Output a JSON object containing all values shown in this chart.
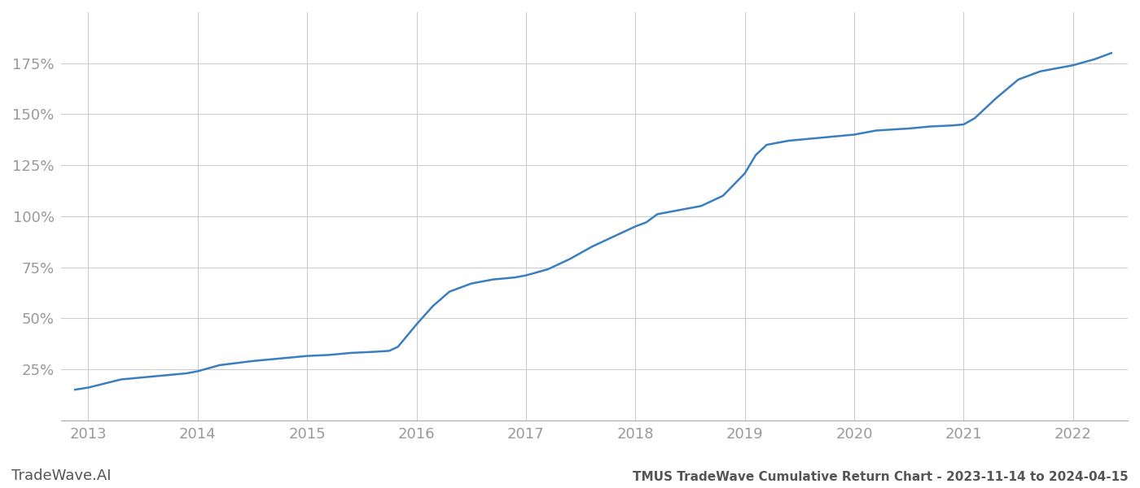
{
  "title": "TMUS TradeWave Cumulative Return Chart - 2023-11-14 to 2024-04-15",
  "watermark": "TradeWave.AI",
  "line_color": "#3a7ebf",
  "background_color": "#ffffff",
  "grid_color": "#cccccc",
  "x_years": [
    2013,
    2014,
    2015,
    2016,
    2017,
    2018,
    2019,
    2020,
    2021,
    2022
  ],
  "data_x": [
    2012.88,
    2013.0,
    2013.15,
    2013.3,
    2013.5,
    2013.7,
    2013.9,
    2014.0,
    2014.2,
    2014.5,
    2014.7,
    2014.9,
    2015.0,
    2015.2,
    2015.4,
    2015.6,
    2015.75,
    2015.83,
    2016.0,
    2016.15,
    2016.3,
    2016.5,
    2016.7,
    2016.9,
    2017.0,
    2017.2,
    2017.4,
    2017.6,
    2017.8,
    2018.0,
    2018.1,
    2018.2,
    2018.4,
    2018.6,
    2018.8,
    2019.0,
    2019.1,
    2019.2,
    2019.4,
    2019.6,
    2019.8,
    2020.0,
    2020.2,
    2020.5,
    2020.7,
    2020.9,
    2021.0,
    2021.1,
    2021.3,
    2021.5,
    2021.7,
    2021.9,
    2022.0,
    2022.2,
    2022.35
  ],
  "data_y": [
    15,
    16,
    18,
    20,
    21,
    22,
    23,
    24,
    27,
    29,
    30,
    31,
    31.5,
    32,
    33,
    33.5,
    34,
    36,
    47,
    56,
    63,
    67,
    69,
    70,
    71,
    74,
    79,
    85,
    90,
    95,
    97,
    101,
    103,
    105,
    110,
    121,
    130,
    135,
    137,
    138,
    139,
    140,
    142,
    143,
    144,
    144.5,
    145,
    148,
    158,
    167,
    171,
    173,
    174,
    177,
    180
  ],
  "ylim": [
    0,
    200
  ],
  "yticks": [
    25,
    50,
    75,
    100,
    125,
    150,
    175
  ],
  "ytick_labels": [
    "25%",
    "50%",
    "75%",
    "100%",
    "125%",
    "150%",
    "175%"
  ],
  "title_fontsize": 11,
  "tick_fontsize": 13,
  "watermark_fontsize": 13,
  "line_width": 1.8,
  "title_color": "#555555",
  "tick_color": "#999999",
  "watermark_color": "#555555"
}
